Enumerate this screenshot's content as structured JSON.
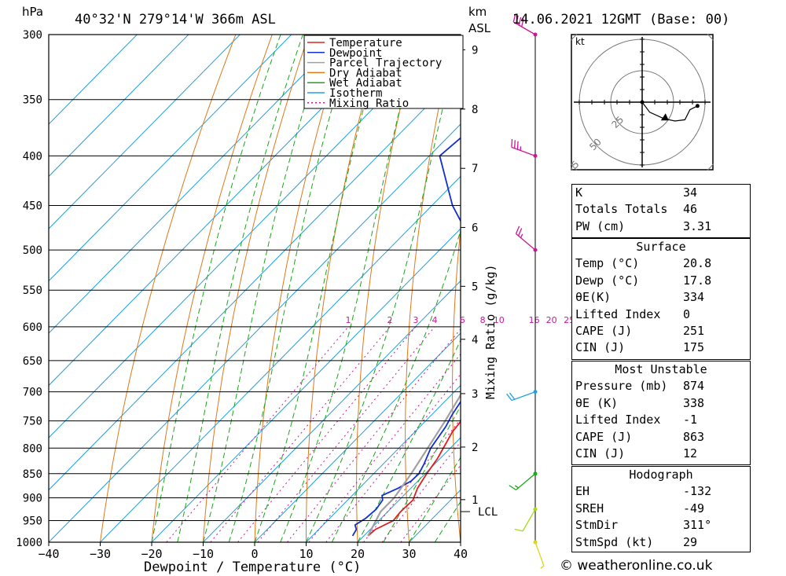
{
  "chart_data": {
    "type": "skew-t",
    "location": "40°32'N  279°14'W  366m  ASL",
    "datetime": "14.06.2021  12GMT  (Base: 00)",
    "ylabel_left": "hPa",
    "ylabel_right_top": "km",
    "ylabel_right_top2": "ASL",
    "xlabel": "Dewpoint / Temperature (°C)",
    "right_axis_label": "Mixing Ratio (g/kg)",
    "pressure_ticks": [
      300,
      350,
      400,
      450,
      500,
      550,
      600,
      650,
      700,
      750,
      800,
      850,
      900,
      950,
      1000
    ],
    "temperature_ticks": [
      -40,
      -30,
      -20,
      -10,
      0,
      10,
      20,
      30,
      40
    ],
    "xlim": [
      -40,
      40
    ],
    "plim": [
      1000,
      300
    ],
    "height_ticks_km": [
      {
        "km": "1",
        "p": 904
      },
      {
        "km": "2",
        "p": 798
      },
      {
        "km": "3",
        "p": 703
      },
      {
        "km": "4",
        "p": 618
      },
      {
        "km": "5",
        "p": 545
      },
      {
        "km": "6",
        "p": 474
      },
      {
        "km": "7",
        "p": 412
      },
      {
        "km": "8",
        "p": 358
      },
      {
        "km": "9",
        "p": 311
      }
    ],
    "lcl": {
      "label": "LCL",
      "p": 930
    },
    "mixing_ratio_labels": [
      {
        "label": "1",
        "g": 1
      },
      {
        "label": "2",
        "g": 2
      },
      {
        "label": "3",
        "g": 3
      },
      {
        "label": "4",
        "g": 4
      },
      {
        "label": "6",
        "g": 6
      },
      {
        "label": "8",
        "g": 8
      },
      {
        "label": "10",
        "g": 10
      },
      {
        "label": "16",
        "g": 16
      },
      {
        "label": "20",
        "g": 20
      },
      {
        "label": "25",
        "g": 25
      }
    ],
    "legend": [
      "Temperature",
      "Dewpoint",
      "Parcel Trajectory",
      "Dry Adiabat",
      "Wet Adiabat",
      "Isotherm",
      "Mixing Ratio"
    ],
    "colors": {
      "temperature": "#e02020",
      "dewpoint": "#1030d0",
      "parcel": "#a0a0a0",
      "dry_adiabat": "#e07818",
      "wet_adiabat": "#18a818",
      "isotherm": "#20a0e0",
      "mixing_ratio": "#c81898",
      "wind_axis": "#000000"
    },
    "series": [
      {
        "name": "Temperature",
        "points": [
          [
            985,
            20.8
          ],
          [
            970,
            21
          ],
          [
            950,
            22.8
          ],
          [
            930,
            22.5
          ],
          [
            905,
            22.7
          ],
          [
            880,
            21.3
          ],
          [
            850,
            20.3
          ],
          [
            820,
            19.5
          ],
          [
            790,
            18.2
          ],
          [
            770,
            17.3
          ],
          [
            740,
            16.7
          ],
          [
            715,
            15.6
          ],
          [
            690,
            14.5
          ],
          [
            665,
            12.9
          ],
          [
            645,
            11.8
          ],
          [
            630,
            12.4
          ],
          [
            610,
            10.4
          ],
          [
            590,
            9.4
          ],
          [
            575,
            9.2
          ],
          [
            560,
            10.3
          ],
          [
            545,
            9.7
          ],
          [
            520,
            10.3
          ],
          [
            500,
            9.5
          ],
          [
            490,
            8.5
          ],
          [
            450,
            5.0
          ],
          [
            400,
            -1.0
          ],
          [
            350,
            -10.0
          ],
          [
            300,
            -22.0
          ]
        ]
      },
      {
        "name": "Dewpoint",
        "points": [
          [
            985,
            17.8
          ],
          [
            970,
            17.3
          ],
          [
            960,
            16.2
          ],
          [
            945,
            17
          ],
          [
            925,
            17.3
          ],
          [
            905,
            16.8
          ],
          [
            895,
            15.8
          ],
          [
            880,
            17.5
          ],
          [
            865,
            18.7
          ],
          [
            850,
            18.8
          ],
          [
            830,
            17.9
          ],
          [
            800,
            16.2
          ],
          [
            760,
            15.0
          ],
          [
            740,
            14.0
          ],
          [
            700,
            12.5
          ],
          [
            675,
            12.6
          ],
          [
            650,
            12.0
          ],
          [
            635,
            8.7
          ],
          [
            605,
            4.7
          ],
          [
            595,
            3.0
          ],
          [
            590,
            8.0
          ],
          [
            580,
            9.5
          ],
          [
            568,
            6.0
          ],
          [
            560,
            8.0
          ],
          [
            548,
            9.0
          ],
          [
            530,
            0
          ],
          [
            520,
            1.5
          ],
          [
            510,
            -7.0
          ],
          [
            505,
            -8.5
          ],
          [
            500,
            -11.5
          ],
          [
            480,
            -18.0
          ],
          [
            450,
            -26.0
          ],
          [
            400,
            -38.0
          ],
          [
            350,
            -36.0
          ],
          [
            300,
            -27.0
          ]
        ]
      },
      {
        "name": "Parcel Trajectory",
        "points": [
          [
            985,
            20.8
          ],
          [
            930,
            18.6
          ],
          [
            900,
            18.6
          ],
          [
            850,
            17.3
          ],
          [
            800,
            15.6
          ],
          [
            750,
            13.8
          ],
          [
            700,
            11.6
          ],
          [
            650,
            9.3
          ],
          [
            600,
            7.0
          ],
          [
            550,
            4.3
          ],
          [
            500,
            0.7
          ],
          [
            450,
            -3.9
          ],
          [
            400,
            -10.1
          ],
          [
            350,
            -18.0
          ],
          [
            300,
            -27.5
          ]
        ]
      }
    ],
    "winds": [
      {
        "p": 300,
        "dir": 300,
        "spd": 40,
        "color": "#c81898"
      },
      {
        "p": 400,
        "dir": 290,
        "spd": 35,
        "color": "#c81898"
      },
      {
        "p": 500,
        "dir": 310,
        "spd": 25,
        "color": "#c81898"
      },
      {
        "p": 700,
        "dir": 250,
        "spd": 20,
        "color": "#20a0e0"
      },
      {
        "p": 850,
        "dir": 230,
        "spd": 15,
        "color": "#18a818"
      },
      {
        "p": 925,
        "dir": 210,
        "spd": 10,
        "color": "#a8d818"
      },
      {
        "p": 1000,
        "dir": 160,
        "spd": 5,
        "color": "#d8d818"
      }
    ],
    "hodograph": {
      "units": "kt",
      "rings": [
        "25",
        "50",
        "75"
      ],
      "points": [
        [
          0,
          0
        ],
        [
          6,
          -8
        ],
        [
          17,
          -13
        ],
        [
          26,
          -15
        ],
        [
          34,
          -14
        ],
        [
          38,
          -6
        ],
        [
          44,
          -3
        ]
      ],
      "storm_motion": [
        18,
        -12
      ]
    }
  },
  "indices": {
    "k": {
      "label": "K",
      "value": "34"
    },
    "totals": {
      "label": "Totals Totals",
      "value": "46"
    },
    "pw": {
      "label": "PW (cm)",
      "value": "3.31"
    }
  },
  "surface": {
    "title": "Surface",
    "temp": {
      "label": "Temp (°C)",
      "value": "20.8"
    },
    "dewp": {
      "label": "Dewp (°C)",
      "value": "17.8"
    },
    "theta_e": {
      "label": "θE(K)",
      "value": "334"
    },
    "li": {
      "label": "Lifted Index",
      "value": "0"
    },
    "cape": {
      "label": "CAPE (J)",
      "value": "251"
    },
    "cin": {
      "label": "CIN (J)",
      "value": "175"
    }
  },
  "most_unstable": {
    "title": "Most Unstable",
    "pressure": {
      "label": "Pressure (mb)",
      "value": "874"
    },
    "theta_e": {
      "label": "θE (K)",
      "value": "338"
    },
    "li": {
      "label": "Lifted Index",
      "value": "-1"
    },
    "cape": {
      "label": "CAPE (J)",
      "value": "863"
    },
    "cin": {
      "label": "CIN (J)",
      "value": "12"
    }
  },
  "hodograph_table": {
    "title": "Hodograph",
    "eh": {
      "label": "EH",
      "value": "-132"
    },
    "sreh": {
      "label": "SREH",
      "value": "-49"
    },
    "stmdir": {
      "label": "StmDir",
      "value": "311°"
    },
    "stmspd": {
      "label": "StmSpd (kt)",
      "value": "29"
    }
  },
  "credit": "© weatheronline.co.uk"
}
